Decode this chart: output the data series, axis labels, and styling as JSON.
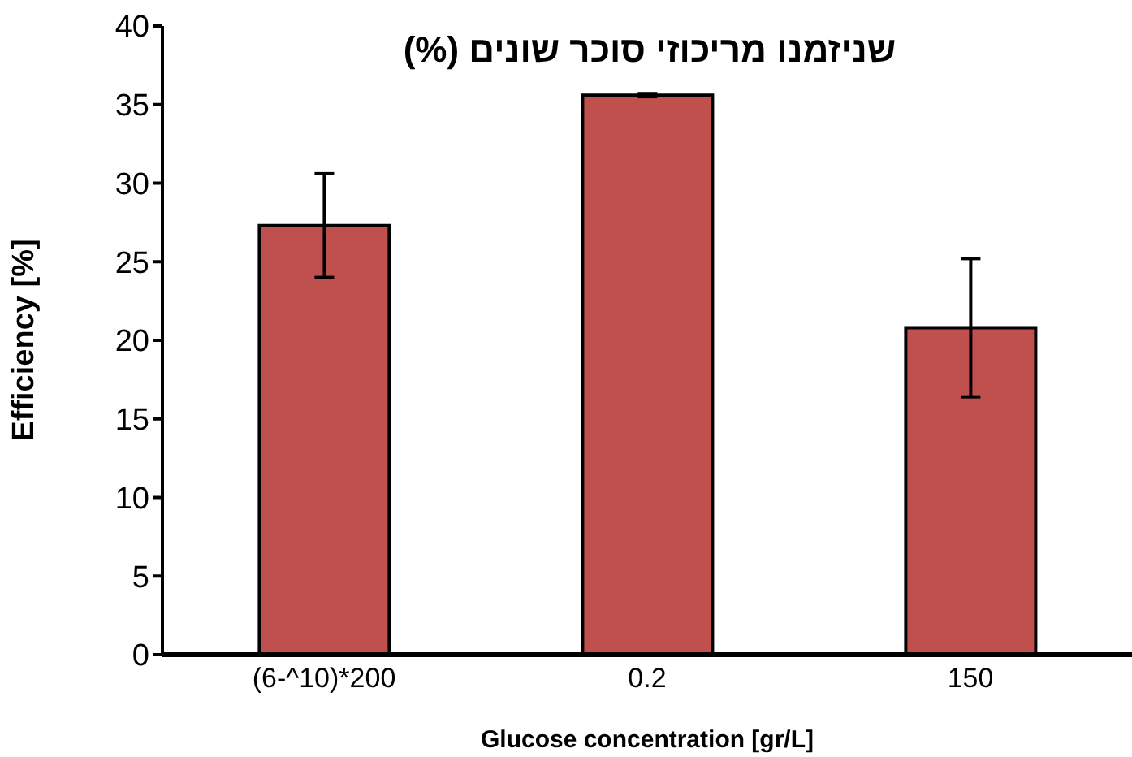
{
  "chart_data": {
    "type": "bar",
    "title": "שניזמנו מריכוזי סוכר שונים (%)",
    "xlabel": "Glucose concentration [gr/L]",
    "ylabel": "Efficiency [%]",
    "categories": [
      "(6-^10)*200",
      "0.2",
      "150"
    ],
    "series": [
      {
        "color": "#c0504d",
        "values": [
          27.3,
          35.6,
          20.8
        ],
        "errors": [
          3.3,
          0.1,
          4.4
        ]
      }
    ],
    "ylim": [
      0,
      40
    ],
    "yticks": [
      0,
      5,
      10,
      15,
      20,
      25,
      30,
      35,
      40
    ],
    "grid": false,
    "legend": false
  }
}
